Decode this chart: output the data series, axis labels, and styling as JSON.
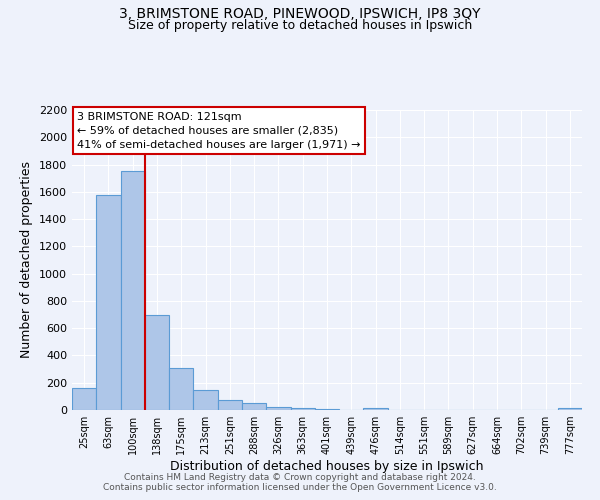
{
  "title1": "3, BRIMSTONE ROAD, PINEWOOD, IPSWICH, IP8 3QY",
  "title2": "Size of property relative to detached houses in Ipswich",
  "xlabel": "Distribution of detached houses by size in Ipswich",
  "ylabel": "Number of detached properties",
  "bar_labels": [
    "25sqm",
    "63sqm",
    "100sqm",
    "138sqm",
    "175sqm",
    "213sqm",
    "251sqm",
    "288sqm",
    "326sqm",
    "363sqm",
    "401sqm",
    "439sqm",
    "476sqm",
    "514sqm",
    "551sqm",
    "589sqm",
    "627sqm",
    "664sqm",
    "702sqm",
    "739sqm",
    "777sqm"
  ],
  "bar_values": [
    160,
    1580,
    1750,
    700,
    310,
    150,
    75,
    50,
    25,
    15,
    10,
    0,
    15,
    0,
    0,
    0,
    0,
    0,
    0,
    0,
    15
  ],
  "bar_color": "#aec6e8",
  "bar_edge_color": "#5b9bd5",
  "red_line_bin": 2.5,
  "annotation_title": "3 BRIMSTONE ROAD: 121sqm",
  "annotation_line1": "← 59% of detached houses are smaller (2,835)",
  "annotation_line2": "41% of semi-detached houses are larger (1,971) →",
  "ylim": [
    0,
    2200
  ],
  "yticks": [
    0,
    200,
    400,
    600,
    800,
    1000,
    1200,
    1400,
    1600,
    1800,
    2000,
    2200
  ],
  "footer1": "Contains HM Land Registry data © Crown copyright and database right 2024.",
  "footer2": "Contains public sector information licensed under the Open Government Licence v3.0.",
  "bg_color": "#eef2fb",
  "grid_color": "#ffffff",
  "title1_fontsize": 10,
  "title2_fontsize": 9
}
